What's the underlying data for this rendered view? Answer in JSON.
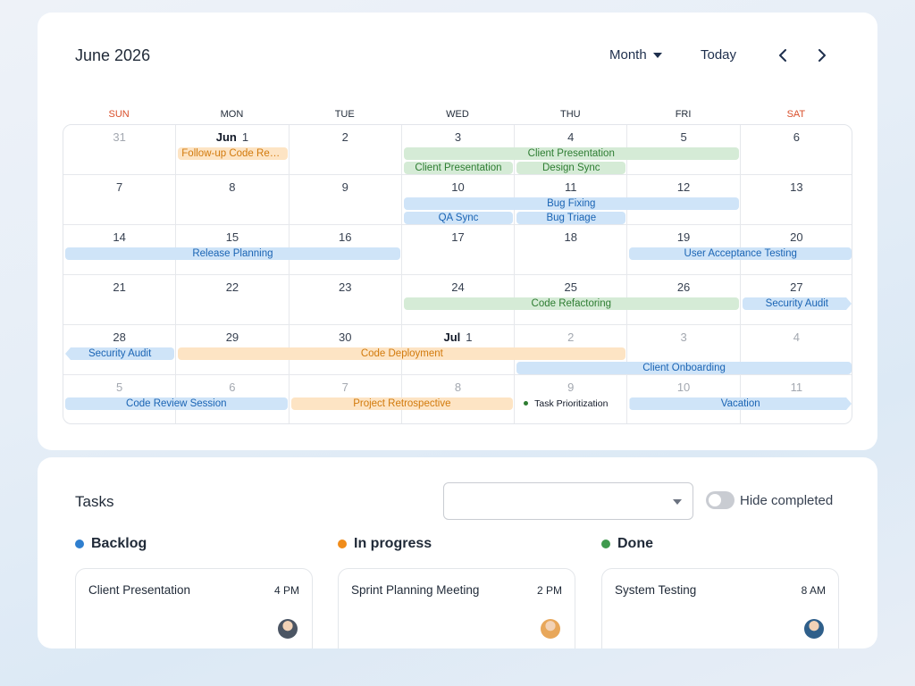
{
  "calendar": {
    "title": "June 2026",
    "view_label": "Month",
    "today_label": "Today",
    "weekdays": [
      "SUN",
      "MON",
      "TUE",
      "WED",
      "THU",
      "FRI",
      "SAT"
    ],
    "weekend_color": "#d94f2b",
    "weeks": [
      [
        {
          "d": "31",
          "m": true
        },
        {
          "d": "1",
          "label": "Jun"
        },
        {
          "d": "2"
        },
        {
          "d": "3"
        },
        {
          "d": "4"
        },
        {
          "d": "5"
        },
        {
          "d": "6"
        }
      ],
      [
        {
          "d": "7"
        },
        {
          "d": "8"
        },
        {
          "d": "9"
        },
        {
          "d": "10"
        },
        {
          "d": "11"
        },
        {
          "d": "12"
        },
        {
          "d": "13"
        }
      ],
      [
        {
          "d": "14"
        },
        {
          "d": "15"
        },
        {
          "d": "16"
        },
        {
          "d": "17"
        },
        {
          "d": "18"
        },
        {
          "d": "19"
        },
        {
          "d": "20"
        }
      ],
      [
        {
          "d": "21"
        },
        {
          "d": "22"
        },
        {
          "d": "23"
        },
        {
          "d": "24"
        },
        {
          "d": "25"
        },
        {
          "d": "26"
        },
        {
          "d": "27"
        }
      ],
      [
        {
          "d": "28"
        },
        {
          "d": "29"
        },
        {
          "d": "30"
        },
        {
          "d": "1",
          "label": "Jul"
        },
        {
          "d": "2",
          "m": true
        },
        {
          "d": "3",
          "m": true
        },
        {
          "d": "4",
          "m": true
        }
      ],
      [
        {
          "d": "5",
          "m": true
        },
        {
          "d": "6",
          "m": true
        },
        {
          "d": "7",
          "m": true
        },
        {
          "d": "8",
          "m": true
        },
        {
          "d": "9",
          "m": true
        },
        {
          "d": "10",
          "m": true
        },
        {
          "d": "11",
          "m": true
        }
      ]
    ],
    "events": [
      {
        "title": "Follow-up Code Review",
        "week": 0,
        "start": 1,
        "end": 1,
        "lane": 0,
        "color": "orange"
      },
      {
        "title": "Client Presentation",
        "week": 0,
        "start": 3,
        "end": 5,
        "lane": 0,
        "color": "green"
      },
      {
        "title": "Client Presentation",
        "week": 0,
        "start": 3,
        "end": 3,
        "lane": 1,
        "color": "green"
      },
      {
        "title": "Design Sync",
        "week": 0,
        "start": 4,
        "end": 4,
        "lane": 1,
        "color": "green"
      },
      {
        "title": "Bug Fixing",
        "week": 1,
        "start": 3,
        "end": 5,
        "lane": 0,
        "color": "blue"
      },
      {
        "title": "QA Sync",
        "week": 1,
        "start": 3,
        "end": 3,
        "lane": 1,
        "color": "blue"
      },
      {
        "title": "Bug Triage",
        "week": 1,
        "start": 4,
        "end": 4,
        "lane": 1,
        "color": "blue"
      },
      {
        "title": "Release Planning",
        "week": 2,
        "start": 0,
        "end": 2,
        "lane": 0,
        "color": "blue"
      },
      {
        "title": "User Acceptance Testing",
        "week": 2,
        "start": 5,
        "end": 6,
        "lane": 0,
        "color": "blue"
      },
      {
        "title": "Code Refactoring",
        "week": 3,
        "start": 3,
        "end": 5,
        "lane": 0,
        "color": "green"
      },
      {
        "title": "Security Audit",
        "week": 3,
        "start": 6,
        "end": 6,
        "lane": 0,
        "color": "blue",
        "cont": "right"
      },
      {
        "title": "Security Audit",
        "week": 4,
        "start": 0,
        "end": 0,
        "lane": 0,
        "color": "blue",
        "cont": "left"
      },
      {
        "title": "Code Deployment",
        "week": 4,
        "start": 1,
        "end": 4,
        "lane": 0,
        "color": "orange"
      },
      {
        "title": "Client Onboarding",
        "week": 4,
        "start": 4,
        "end": 6,
        "lane": 1,
        "color": "blue"
      },
      {
        "title": "Code Review Session",
        "week": 5,
        "start": 0,
        "end": 1,
        "lane": 0,
        "color": "blue"
      },
      {
        "title": "Project Retrospective",
        "week": 5,
        "start": 2,
        "end": 3,
        "lane": 0,
        "color": "orange"
      },
      {
        "title": "Task Prioritization",
        "week": 5,
        "start": 4,
        "end": 4,
        "lane": 0,
        "color": "dot"
      },
      {
        "title": "Vacation",
        "week": 5,
        "start": 5,
        "end": 6,
        "lane": 0,
        "color": "blue",
        "cont": "right"
      }
    ]
  },
  "tasks": {
    "title": "Tasks",
    "select_value": "",
    "hide_completed_label": "Hide completed",
    "hide_completed_on": false,
    "columns": [
      {
        "name": "Backlog",
        "color": "#2f7fcf",
        "cards": [
          {
            "title": "Client Presentation",
            "time": "4 PM"
          }
        ]
      },
      {
        "name": "In progress",
        "color": "#f08c1a",
        "cards": [
          {
            "title": "Sprint Planning Meeting",
            "time": "2 PM"
          }
        ]
      },
      {
        "name": "Done",
        "color": "#3f9a4d",
        "cards": [
          {
            "title": "System Testing",
            "time": "8 AM"
          }
        ]
      }
    ]
  }
}
